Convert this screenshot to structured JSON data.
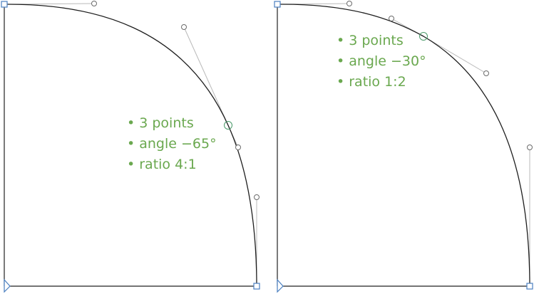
{
  "panels": [
    {
      "annotations": [
        "• 3 points",
        "• angle −65°",
        "• ratio 4:1"
      ]
    },
    {
      "annotations": [
        "• 3 points",
        "• angle −30°",
        "• ratio 1:2"
      ]
    }
  ],
  "colors": {
    "curve": "#1e1e1e",
    "handle_line": "#b9b9b9",
    "on_curve_point": "#4a9a6a",
    "corner_node": "#4a7fc0",
    "annotation": "#6aa84f"
  }
}
